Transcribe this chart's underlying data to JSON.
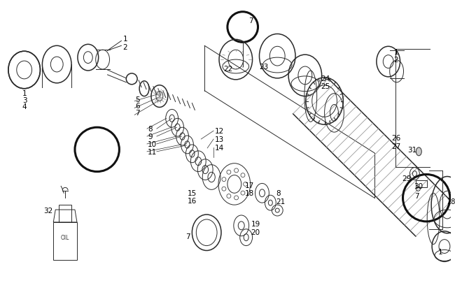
{
  "bg_color": "#ffffff",
  "line_color": "#2a2a2a",
  "fig_width": 6.5,
  "fig_height": 4.06,
  "dpi": 100,
  "lw_thin": 0.7,
  "lw_med": 1.1,
  "lw_thick": 2.2,
  "gray_line": "#888888",
  "dark_line": "#111111",
  "label_fs": 7.5
}
